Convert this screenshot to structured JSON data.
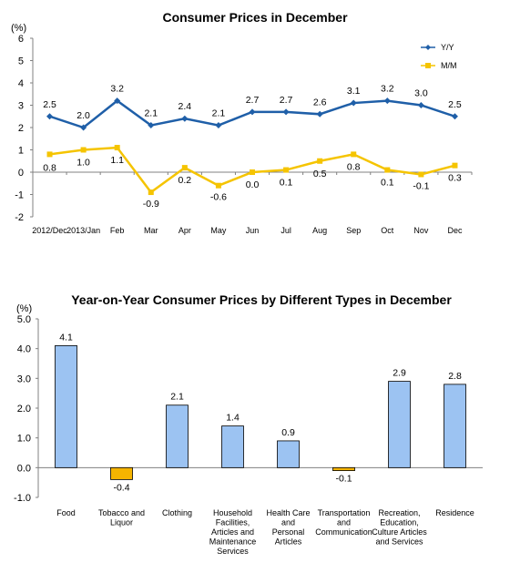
{
  "chart_data": [
    {
      "type": "line",
      "title": "Consumer Prices in December",
      "unit": "(%)",
      "categories": [
        "2012/Dec",
        "2013/Jan",
        "Feb",
        "Mar",
        "Apr",
        "May",
        "Jun",
        "Jul",
        "Aug",
        "Sep",
        "Oct",
        "Nov",
        "Dec"
      ],
      "ylim": [
        -2,
        6
      ],
      "yticks": [
        "-2",
        "-1",
        "0",
        "1",
        "2",
        "3",
        "4",
        "5",
        "6"
      ],
      "series": [
        {
          "name": "Y/Y",
          "color": "#1f5fa8",
          "values": [
            2.5,
            2.0,
            3.2,
            2.1,
            2.4,
            2.1,
            2.7,
            2.7,
            2.6,
            3.1,
            3.2,
            3.0,
            2.5
          ],
          "labels": [
            "2.5",
            "2.0",
            "3.2",
            "2.1",
            "2.4",
            "2.1",
            "2.7",
            "2.7",
            "2.6",
            "3.1",
            "3.2",
            "3.0",
            "2.5"
          ]
        },
        {
          "name": "M/M",
          "color": "#f5c400",
          "values": [
            0.8,
            1.0,
            1.1,
            -0.9,
            0.2,
            -0.6,
            0.0,
            0.1,
            0.5,
            0.8,
            0.1,
            -0.1,
            0.3
          ],
          "labels": [
            "0.8",
            "1.0",
            "1.1",
            "-0.9",
            "0.2",
            "-0.6",
            "0.0",
            "0.1",
            "0.5",
            "0.8",
            "0.1",
            "-0.1",
            "0.3"
          ]
        }
      ],
      "legend_position": "top-right",
      "grid": false
    },
    {
      "type": "bar",
      "title": "Year-on-Year Consumer Prices by Different  Types in December",
      "unit": "(%)",
      "categories": [
        [
          "Food"
        ],
        [
          "Tobacco and",
          "Liquor"
        ],
        [
          "Clothing"
        ],
        [
          "Household",
          "Facilities,",
          "Articles and",
          "Maintenance",
          "Services"
        ],
        [
          "Health Care",
          "and",
          "Personal",
          "Articles"
        ],
        [
          "Transportation",
          "and",
          "Communication"
        ],
        [
          "Recreation,",
          "Education,",
          "Culture Articles",
          "and Services"
        ],
        [
          "Residence"
        ]
      ],
      "values": [
        4.1,
        -0.4,
        2.1,
        1.4,
        0.9,
        -0.1,
        2.9,
        2.8
      ],
      "labels": [
        "4.1",
        "-0.4",
        "2.1",
        "1.4",
        "0.9",
        "-0.1",
        "2.9",
        "2.8"
      ],
      "ylim": [
        -1,
        5
      ],
      "yticks": [
        "-1.0",
        "0.0",
        "1.0",
        "2.0",
        "3.0",
        "4.0",
        "5.0"
      ],
      "positive_color": "#9cc3f2",
      "negative_color": "#f5b400",
      "grid": false
    }
  ]
}
